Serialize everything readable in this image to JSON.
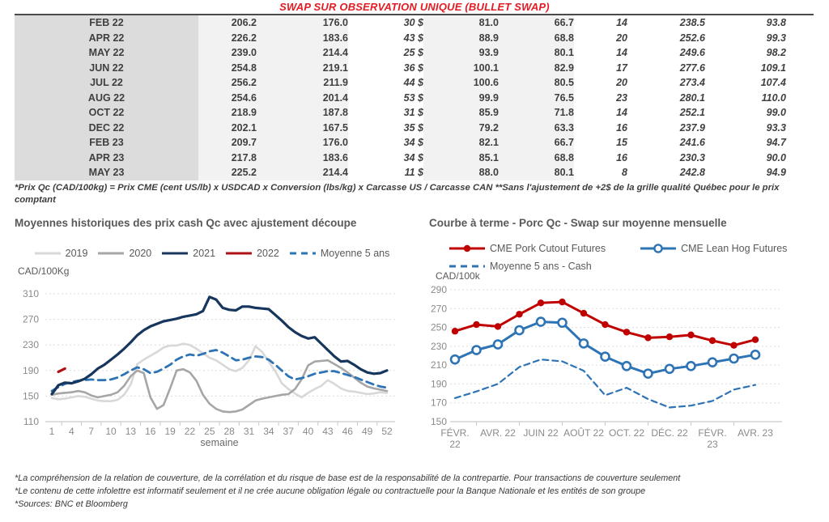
{
  "title": "SWAP SUR OBSERVATION UNIQUE (BULLET SWAP)",
  "table": {
    "rows": [
      [
        "FEB 22",
        "206.2",
        "176.0",
        "30 $",
        "81.0",
        "66.7",
        "14",
        "238.5",
        "93.8"
      ],
      [
        "APR 22",
        "226.2",
        "183.6",
        "43 $",
        "88.9",
        "68.8",
        "20",
        "252.6",
        "99.3"
      ],
      [
        "MAY 22",
        "239.0",
        "214.4",
        "25 $",
        "93.9",
        "80.1",
        "14",
        "249.6",
        "98.2"
      ],
      [
        "JUN 22",
        "254.8",
        "219.1",
        "36 $",
        "100.1",
        "82.9",
        "17",
        "277.6",
        "109.1"
      ],
      [
        "JUL 22",
        "256.2",
        "211.9",
        "44 $",
        "100.6",
        "80.5",
        "20",
        "273.4",
        "107.4"
      ],
      [
        "AUG 22",
        "254.6",
        "201.4",
        "53 $",
        "99.9",
        "76.5",
        "23",
        "280.1",
        "110.0"
      ],
      [
        "OCT 22",
        "218.9",
        "187.8",
        "31 $",
        "85.9",
        "71.8",
        "14",
        "252.1",
        "99.0"
      ],
      [
        "DEC 22",
        "202.1",
        "167.5",
        "35 $",
        "79.2",
        "63.3",
        "16",
        "237.9",
        "93.3"
      ],
      [
        "FEB 23",
        "209.7",
        "176.0",
        "34 $",
        "82.1",
        "66.7",
        "15",
        "241.6",
        "94.7"
      ],
      [
        "APR 23",
        "217.8",
        "183.6",
        "34 $",
        "85.1",
        "68.8",
        "16",
        "230.3",
        "90.0"
      ],
      [
        "MAY 23",
        "225.2",
        "214.4",
        "11 $",
        "88.0",
        "80.1",
        "8",
        "242.8",
        "94.9"
      ]
    ]
  },
  "table_note": "*Prix Qc (CAD/100kg) = Prix CME (cent US/lb) x USDCAD x Conversion (lbs/kg) x Carcasse US / Carcasse CAN **Sans l'ajustement de +2$ de la grille qualité Québec pour le prix comptant",
  "colors": {
    "title_red": "#e31b23",
    "green_value": "#00a651",
    "blue_value": "#2e74b5",
    "navy_2021": "#17365d",
    "red_2022": "#b01117",
    "chart_red": "#c00000",
    "chart_blue": "#2e74b5"
  },
  "chart_data": [
    {
      "type": "line",
      "title": "Moyennes historiques des prix cash Qc avec ajustement découpe",
      "y_unit": "CAD/100Kg",
      "xlabel": "semaine",
      "xlim": [
        1,
        52
      ],
      "ylim": [
        110,
        310
      ],
      "xticks": [
        1,
        4,
        7,
        10,
        13,
        16,
        19,
        22,
        25,
        28,
        31,
        34,
        37,
        40,
        43,
        46,
        49,
        52
      ],
      "yticks": [
        110,
        150,
        190,
        230,
        270,
        310
      ],
      "grid": "dashed-horizontal",
      "legend_position": "top-center",
      "legend": [
        {
          "label": "2019",
          "color": "#d8d8d8",
          "style": "solid"
        },
        {
          "label": "2020",
          "color": "#a6a6a6",
          "style": "solid"
        },
        {
          "label": "2021",
          "color": "#17365d",
          "style": "solid"
        },
        {
          "label": "2022",
          "color": "#b01117",
          "style": "solid"
        },
        {
          "label": "Moyenne 5 ans",
          "color": "#2e74b5",
          "style": "dash"
        }
      ],
      "series": [
        {
          "name": "2019",
          "color": "#d8d8d8",
          "width": 2.6,
          "values": [
            147,
            145,
            146,
            148,
            150,
            149,
            146,
            143,
            142,
            142,
            144,
            152,
            168,
            200,
            207,
            213,
            219,
            226,
            229,
            229,
            232,
            230,
            224,
            217,
            210,
            206,
            199,
            192,
            189,
            194,
            206,
            228,
            219,
            204,
            189,
            170,
            161,
            154,
            148,
            155,
            161,
            166,
            175,
            169,
            162,
            158,
            157,
            155,
            153,
            154,
            156,
            155
          ]
        },
        {
          "name": "2020",
          "color": "#a6a6a6",
          "width": 2.6,
          "values": [
            152,
            154,
            155,
            156,
            158,
            156,
            151,
            148,
            150,
            152,
            156,
            166,
            181,
            190,
            186,
            148,
            130,
            136,
            162,
            190,
            192,
            187,
            174,
            152,
            138,
            130,
            126,
            125,
            126,
            129,
            136,
            143,
            146,
            148,
            150,
            152,
            153,
            161,
            176,
            198,
            204,
            205,
            206,
            200,
            194,
            187,
            179,
            171,
            165,
            162,
            160,
            158
          ]
        },
        {
          "name": "Moyenne 5 ans",
          "color": "#2e74b5",
          "width": 2.8,
          "dash": "9,6",
          "values": [
            158,
            164,
            169,
            172,
            174,
            175,
            176,
            175,
            175,
            176,
            179,
            184,
            190,
            195,
            192,
            186,
            188,
            193,
            199,
            207,
            212,
            215,
            213,
            216,
            220,
            222,
            218,
            212,
            206,
            207,
            210,
            212,
            211,
            207,
            199,
            190,
            181,
            176,
            178,
            181,
            185,
            187,
            189,
            189,
            186,
            183,
            180,
            176,
            172,
            168,
            165,
            163
          ]
        },
        {
          "name": "2021",
          "color": "#17365d",
          "width": 3.2,
          "values": [
            153,
            167,
            171,
            170,
            173,
            177,
            184,
            193,
            199,
            207,
            215,
            224,
            234,
            245,
            253,
            259,
            263,
            267,
            269,
            271,
            274,
            276,
            278,
            283,
            305,
            301,
            288,
            285,
            284,
            290,
            290,
            288,
            287,
            286,
            277,
            268,
            258,
            250,
            244,
            240,
            242,
            232,
            222,
            212,
            204,
            205,
            199,
            192,
            187,
            185,
            186,
            190
          ]
        },
        {
          "name": "2022",
          "color": "#b01117",
          "width": 3.2,
          "x_start": 2,
          "values": [
            188,
            193
          ]
        }
      ]
    },
    {
      "type": "line",
      "title": "Courbe à terme - Porc Qc - Swap sur moyenne mensuelle",
      "y_unit": "CAD/100k",
      "xlabel": "",
      "ylim": [
        150,
        290
      ],
      "yticks": [
        150,
        170,
        190,
        210,
        230,
        250,
        270,
        290
      ],
      "grid": "dashed-horizontal",
      "legend_position": "top-left",
      "xticklabels": [
        {
          "i": 0,
          "lines": [
            "FÉVR.",
            "22"
          ]
        },
        {
          "i": 2,
          "lines": [
            "AVR. 22"
          ]
        },
        {
          "i": 4,
          "lines": [
            "JUIN 22"
          ]
        },
        {
          "i": 6,
          "lines": [
            "AOÛT 22"
          ]
        },
        {
          "i": 8,
          "lines": [
            "OCT. 22"
          ]
        },
        {
          "i": 10,
          "lines": [
            "DÉC. 22"
          ]
        },
        {
          "i": 12,
          "lines": [
            "FÉVR.",
            "23"
          ]
        },
        {
          "i": 14,
          "lines": [
            "AVR. 23"
          ]
        }
      ],
      "legend_rows": [
        [
          {
            "label": "CME Pork Cutout Futures",
            "color": "#c00000",
            "style": "marker-filled"
          },
          {
            "label": "CME Lean Hog Futures",
            "color": "#2e74b5",
            "style": "marker-open"
          }
        ],
        [
          {
            "label": "Moyenne 5 ans - Cash",
            "color": "#2e74b5",
            "style": "dash"
          }
        ]
      ],
      "series": [
        {
          "name": "Moyenne 5 ans - Cash",
          "color": "#2e74b5",
          "width": 2.2,
          "dash": "7,5",
          "values": [
            175,
            182,
            190,
            208,
            216,
            214,
            204,
            178,
            186,
            174,
            165,
            167,
            172,
            184,
            189
          ]
        },
        {
          "name": "CME Lean Hog Futures",
          "color": "#2e74b5",
          "width": 3,
          "marker": "open",
          "values": [
            216,
            226,
            232,
            247,
            256,
            255,
            233,
            219,
            209,
            201,
            206,
            209,
            213,
            217,
            221
          ]
        },
        {
          "name": "CME Pork Cutout Futures",
          "color": "#c00000",
          "width": 3,
          "marker": "filled",
          "values": [
            246,
            253,
            251,
            264,
            276,
            277,
            265,
            253,
            245,
            239,
            240,
            242,
            236,
            231,
            237
          ]
        }
      ]
    }
  ],
  "footnotes": [
    "*La compréhension de la relation de couverture, de la corrélation et du risque de base est de la responsabilité de la contrepartie. Pour transactions de couverture seulement",
    "*Le contenu de cette infolettre est informatif seulement et il ne crée aucune obligation légale ou contractuelle pour la Banque Nationale et les entités de son groupe",
    "*Sources: BNC et Bloomberg"
  ]
}
